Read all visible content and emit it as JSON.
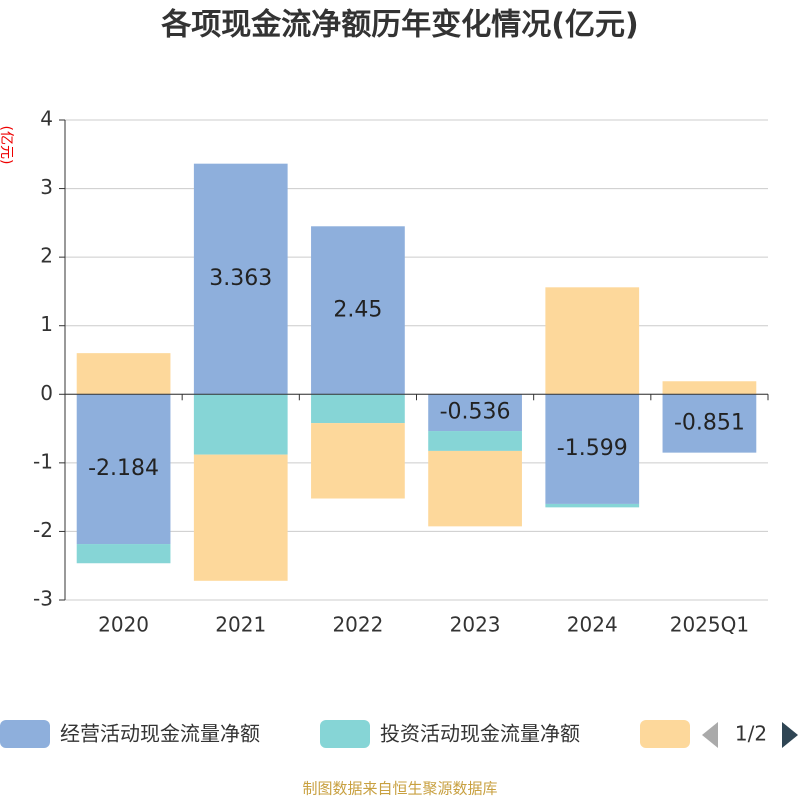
{
  "chart_data": {
    "type": "bar",
    "stacked": true,
    "title": "各项现金流净额历年变化情况(亿元)",
    "y_axis_label": "(亿元)",
    "categories": [
      "2020",
      "2021",
      "2022",
      "2023",
      "2024",
      "2025Q1"
    ],
    "series": [
      {
        "name": "经营活动现金流量净额",
        "color": "#8eafdc",
        "values": [
          -2.184,
          3.363,
          2.45,
          -0.536,
          -1.599,
          -0.851
        ],
        "show_labels": true
      },
      {
        "name": "投资活动现金流量净额",
        "color": "#86d5d6",
        "values": [
          -0.28,
          -0.88,
          -0.42,
          -0.29,
          -0.05,
          0
        ]
      },
      {
        "color": "#fdd89b",
        "values": [
          0.6,
          -1.84,
          -1.1,
          -1.1,
          1.56,
          0.19
        ]
      }
    ],
    "ylim": [
      -3,
      4
    ],
    "yticks": [
      -3,
      -2,
      -1,
      0,
      1,
      2,
      3,
      4
    ],
    "grid": true,
    "legend_page": "1/2",
    "source": "制图数据来自恒生聚源数据库"
  }
}
